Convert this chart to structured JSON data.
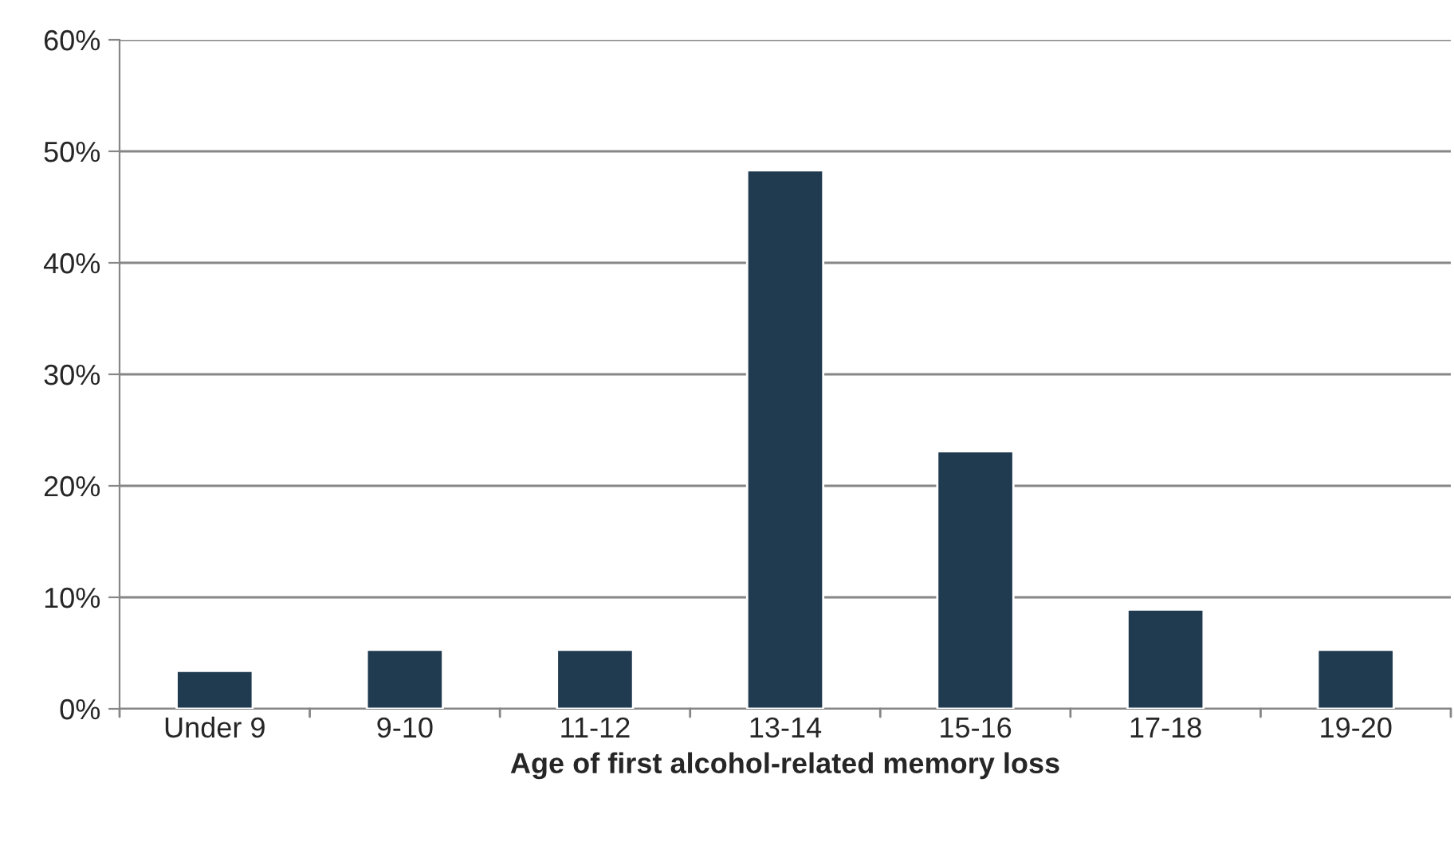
{
  "chart_data": {
    "type": "bar",
    "xlabel": "Age of first alcohol-related memory loss",
    "categories": [
      "Under 9",
      "9-10",
      "11-12",
      "13-14",
      "15-16",
      "17-18",
      "19-20"
    ],
    "values": [
      3.4,
      5.3,
      5.3,
      48.3,
      23.1,
      8.9,
      5.3
    ],
    "color": "#203a50",
    "ylim": [
      0,
      60
    ],
    "yticks": [
      {
        "value": 0,
        "label": "0%"
      },
      {
        "value": 10,
        "label": "10%"
      },
      {
        "value": 20,
        "label": "20%"
      },
      {
        "value": 30,
        "label": "30%"
      },
      {
        "value": 40,
        "label": "40%"
      },
      {
        "value": 50,
        "label": "50%"
      },
      {
        "value": 60,
        "label": "60%"
      }
    ],
    "grid": "y",
    "legend": false
  }
}
